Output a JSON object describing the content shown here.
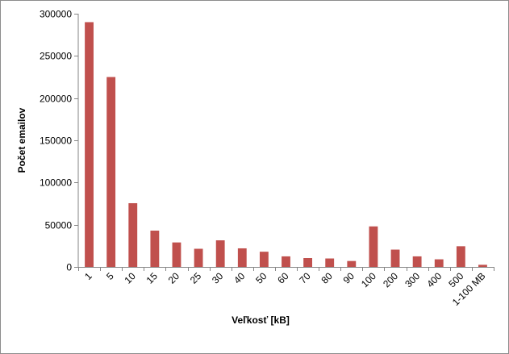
{
  "chart_data": {
    "type": "bar",
    "title": "",
    "xlabel": "Veľkosť [kB]",
    "ylabel": "Počet emailov",
    "categories": [
      "1",
      "5",
      "10",
      "15",
      "20",
      "25",
      "30",
      "40",
      "50",
      "60",
      "70",
      "80",
      "90",
      "100",
      "200",
      "300",
      "400",
      "500",
      "1-100 MB"
    ],
    "values": [
      290000,
      225000,
      75500,
      43000,
      29000,
      21500,
      31500,
      22000,
      18000,
      12500,
      10500,
      10000,
      7000,
      48000,
      20500,
      12500,
      9000,
      24500,
      2500
    ],
    "yticks": [
      "0",
      "50000",
      "100000",
      "150000",
      "200000",
      "250000",
      "300000"
    ],
    "ylim": [
      0,
      300000
    ],
    "grid": false,
    "legend": "none",
    "bar_color": "#c0504d"
  }
}
